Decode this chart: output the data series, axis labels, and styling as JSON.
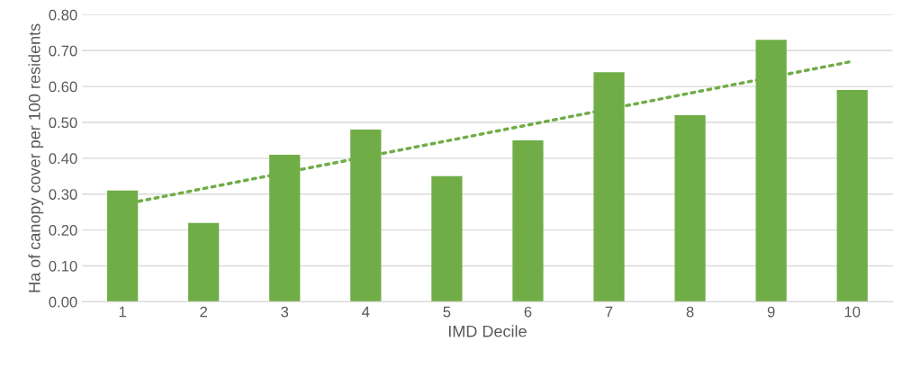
{
  "chart_data": {
    "type": "bar",
    "xlabel": "IMD Decile",
    "ylabel": "Ha of canopy cover per 100 residents",
    "x": [
      1,
      2,
      3,
      4,
      5,
      6,
      7,
      8,
      9,
      10
    ],
    "series": [
      {
        "type": "bar",
        "color": "#70ad47",
        "values": [
          0.31,
          0.22,
          0.41,
          0.48,
          0.35,
          0.45,
          0.64,
          0.52,
          0.73,
          0.59
        ]
      },
      {
        "type": "line",
        "color": "#70ad47",
        "x": [
          1.2,
          10
        ],
        "values": [
          0.28,
          0.67
        ],
        "line_style": "dotted"
      }
    ],
    "xlim": [
      0.5,
      10.5
    ],
    "xticks": [
      1,
      2,
      3,
      4,
      5,
      6,
      7,
      8,
      9,
      10
    ],
    "ylim": [
      0,
      0.8
    ],
    "yticks": [
      {
        "value": 0,
        "label": "0.00"
      },
      {
        "value": 0.1,
        "label": "0.10"
      },
      {
        "value": 0.2,
        "label": "0.20"
      },
      {
        "value": 0.3,
        "label": "0.30"
      },
      {
        "value": 0.4,
        "label": "0.40"
      },
      {
        "value": 0.5,
        "label": "0.50"
      },
      {
        "value": 0.6,
        "label": "0.60"
      },
      {
        "value": 0.7,
        "label": "0.70"
      },
      {
        "value": 0.8,
        "label": "0.80"
      }
    ],
    "grid": "y"
  }
}
